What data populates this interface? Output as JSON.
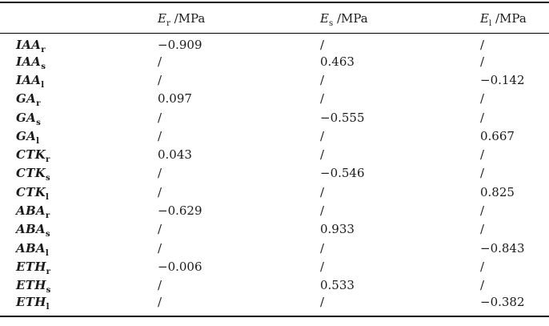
{
  "table": {
    "columns": [
      {
        "symbol": "E",
        "sub": "r",
        "unit": " /MPa"
      },
      {
        "symbol": "E",
        "sub": "s",
        "unit": " /MPa"
      },
      {
        "symbol": "E",
        "sub": "l",
        "unit": " /MPa"
      }
    ],
    "rows": [
      {
        "label": {
          "base": "IAA",
          "sub": "r"
        },
        "values": [
          "−0.909",
          "/",
          "/"
        ]
      },
      {
        "label": {
          "base": "IAA",
          "sub": "s"
        },
        "values": [
          "/",
          "0.463",
          "/"
        ]
      },
      {
        "label": {
          "base": "IAA",
          "sub": "l"
        },
        "values": [
          "/",
          "/",
          "−0.142"
        ]
      },
      {
        "label": {
          "base": "GA",
          "sub": "r"
        },
        "values": [
          "0.097",
          "/",
          "/"
        ]
      },
      {
        "label": {
          "base": "GA",
          "sub": "s"
        },
        "values": [
          "/",
          "−0.555",
          "/"
        ]
      },
      {
        "label": {
          "base": "GA",
          "sub": "l"
        },
        "values": [
          "/",
          "/",
          "0.667"
        ]
      },
      {
        "label": {
          "base": "CTK",
          "sub": "r"
        },
        "values": [
          "0.043",
          "/",
          "/"
        ]
      },
      {
        "label": {
          "base": "CTK",
          "sub": "s"
        },
        "values": [
          "/",
          "−0.546",
          "/"
        ]
      },
      {
        "label": {
          "base": "CTK",
          "sub": "l"
        },
        "values": [
          "/",
          "/",
          "0.825"
        ]
      },
      {
        "label": {
          "base": "ABA",
          "sub": "r"
        },
        "values": [
          "−0.629",
          "/",
          "/"
        ]
      },
      {
        "label": {
          "base": "ABA",
          "sub": "s"
        },
        "values": [
          "/",
          "0.933",
          "/"
        ]
      },
      {
        "label": {
          "base": "ABA",
          "sub": "l"
        },
        "values": [
          "/",
          "/",
          "−0.843"
        ]
      },
      {
        "label": {
          "base": "ETH",
          "sub": "r"
        },
        "values": [
          "−0.006",
          "/",
          "/"
        ]
      },
      {
        "label": {
          "base": "ETH",
          "sub": "s"
        },
        "values": [
          "/",
          "0.533",
          "/"
        ]
      },
      {
        "label": {
          "base": "ETH",
          "sub": "l"
        },
        "values": [
          "/",
          "/",
          "−0.382"
        ]
      }
    ],
    "colors": {
      "text": "#1b1b1b",
      "rule": "#000000",
      "background": "#ffffff"
    }
  },
  "chart_data": {
    "type": "table",
    "title": "",
    "columns": [
      "E_r /MPa",
      "E_s /MPa",
      "E_l /MPa"
    ],
    "row_labels": [
      "IAA_r",
      "IAA_s",
      "IAA_l",
      "GA_r",
      "GA_s",
      "GA_l",
      "CTK_r",
      "CTK_s",
      "CTK_l",
      "ABA_r",
      "ABA_s",
      "ABA_l",
      "ETH_r",
      "ETH_s",
      "ETH_l"
    ],
    "cells": [
      [
        -0.909,
        null,
        null
      ],
      [
        null,
        0.463,
        null
      ],
      [
        null,
        null,
        -0.142
      ],
      [
        0.097,
        null,
        null
      ],
      [
        null,
        -0.555,
        null
      ],
      [
        null,
        null,
        0.667
      ],
      [
        0.043,
        null,
        null
      ],
      [
        null,
        -0.546,
        null
      ],
      [
        null,
        null,
        0.825
      ],
      [
        -0.629,
        null,
        null
      ],
      [
        null,
        0.933,
        null
      ],
      [
        null,
        null,
        -0.843
      ],
      [
        -0.006,
        null,
        null
      ],
      [
        null,
        0.533,
        null
      ],
      [
        null,
        null,
        -0.382
      ]
    ],
    "empty_cell_marker": "/"
  }
}
